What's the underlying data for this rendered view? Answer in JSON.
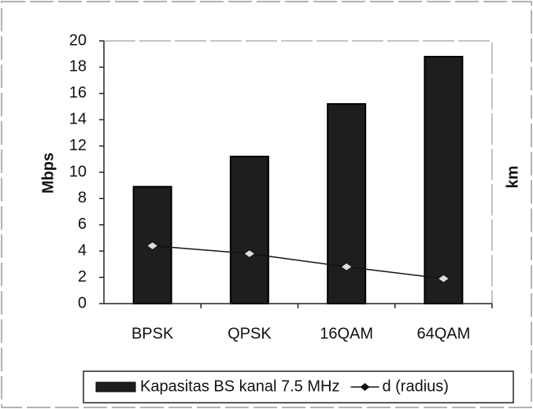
{
  "chart_data": {
    "type": "bar",
    "y_label": "Mbps",
    "y2_label": "km",
    "categories": [
      "BPSK",
      "QPSK",
      "16QAM",
      "64QAM"
    ],
    "series": [
      {
        "name": "Kapasitas BS kanal 7.5 MHz",
        "type": "bar",
        "color": "#1e1e1e",
        "values": [
          8.9,
          11.2,
          15.2,
          18.8
        ]
      },
      {
        "name": "d (radius)",
        "type": "line",
        "color": "#111111",
        "values": [
          4.4,
          3.8,
          2.8,
          1.9
        ]
      }
    ],
    "ylim": [
      0,
      20
    ],
    "yticks": [
      0,
      2,
      4,
      6,
      8,
      10,
      12,
      14,
      16,
      18,
      20
    ],
    "grid": false,
    "legend": "bottom"
  }
}
